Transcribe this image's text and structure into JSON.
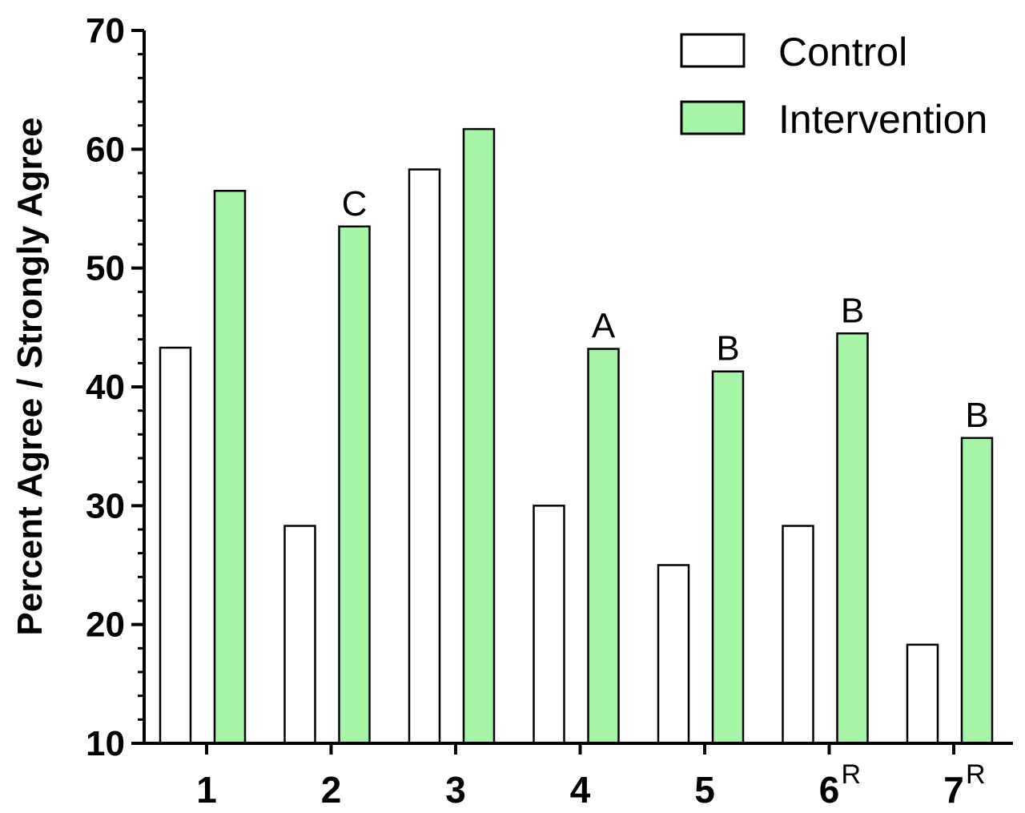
{
  "chart_data": {
    "type": "bar",
    "ylabel": "Percent Agree / Strongly Agree",
    "ylim": [
      10,
      70
    ],
    "yticks": [
      "10",
      "20",
      "30",
      "40",
      "50",
      "60",
      "70"
    ],
    "categories": [
      {
        "label": "1",
        "sup": ""
      },
      {
        "label": "2",
        "sup": ""
      },
      {
        "label": "3",
        "sup": ""
      },
      {
        "label": "4",
        "sup": ""
      },
      {
        "label": "5",
        "sup": ""
      },
      {
        "label": "6",
        "sup": "R"
      },
      {
        "label": "7",
        "sup": "R"
      }
    ],
    "series": [
      {
        "name": "Control",
        "color": "#ffffff",
        "values": [
          43.3,
          28.3,
          58.3,
          30.0,
          25.0,
          28.3,
          18.3
        ]
      },
      {
        "name": "Intervention",
        "color": "#a6f5a6",
        "values": [
          56.5,
          53.5,
          61.7,
          43.2,
          41.3,
          44.5,
          35.7
        ]
      }
    ],
    "annotations": [
      "",
      "C",
      "",
      "A",
      "B",
      "B",
      "B"
    ],
    "legend_position": "top-right",
    "grid": false
  }
}
